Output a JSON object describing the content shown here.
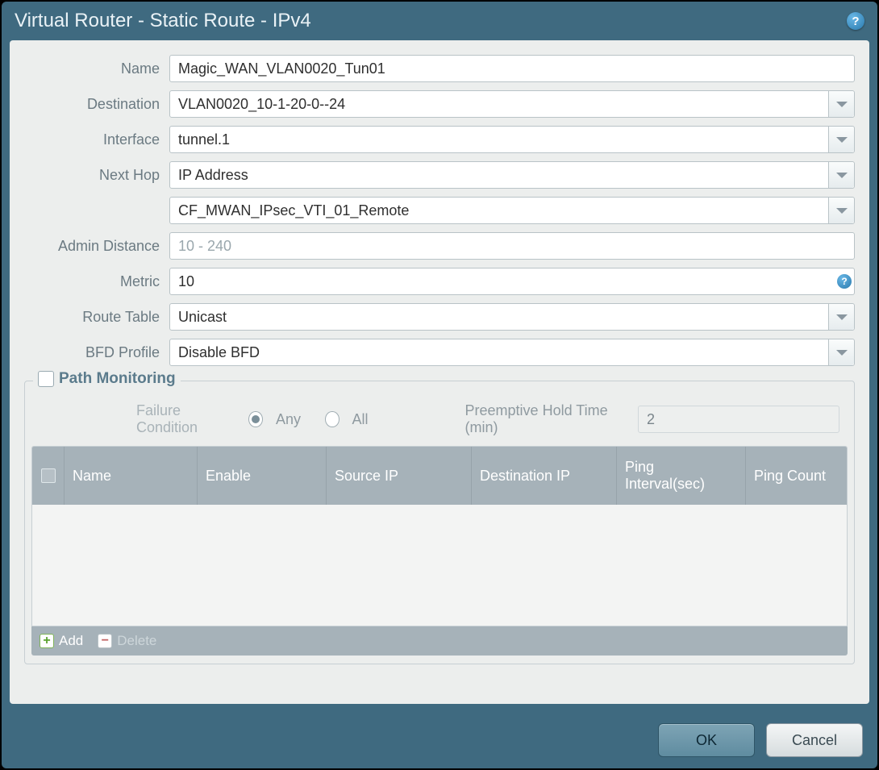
{
  "window": {
    "title": "Virtual Router - Static Route - IPv4"
  },
  "form": {
    "name_label": "Name",
    "name_value": "Magic_WAN_VLAN0020_Tun01",
    "destination_label": "Destination",
    "destination_value": "VLAN0020_10-1-20-0--24",
    "interface_label": "Interface",
    "interface_value": "tunnel.1",
    "nexthop_label": "Next Hop",
    "nexthop_type": "IP Address",
    "nexthop_value": "CF_MWAN_IPsec_VTI_01_Remote",
    "admin_distance_label": "Admin Distance",
    "admin_distance_placeholder": "10 - 240",
    "admin_distance_value": "",
    "metric_label": "Metric",
    "metric_value": "10",
    "route_table_label": "Route Table",
    "route_table_value": "Unicast",
    "bfd_label": "BFD Profile",
    "bfd_value": "Disable BFD"
  },
  "path_monitoring": {
    "legend": "Path Monitoring",
    "enabled": false,
    "failure_condition_label": "Failure Condition",
    "failure_condition": "Any",
    "option_any": "Any",
    "option_all": "All",
    "preemptive_label": "Preemptive Hold Time (min)",
    "preemptive_value": "2",
    "columns": {
      "name": "Name",
      "enable": "Enable",
      "source_ip": "Source IP",
      "destination_ip": "Destination IP",
      "ping_interval": "Ping Interval(sec)",
      "ping_count": "Ping Count"
    },
    "rows": [],
    "add_label": "Add",
    "delete_label": "Delete"
  },
  "buttons": {
    "ok": "OK",
    "cancel": "Cancel"
  },
  "colors": {
    "window_bg": "#3f6a80",
    "content_bg": "#eceeed",
    "header_bg": "#a6b2b9",
    "border": "#b9c3c7",
    "label": "#6b7a82",
    "disabled_text": "#8f9aa0"
  }
}
